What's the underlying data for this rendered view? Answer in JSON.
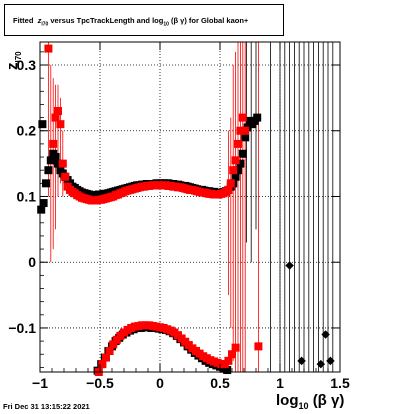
{
  "chart_data": {
    "type": "scatter",
    "title_parts": {
      "pre": "Fitted",
      "var": "z",
      "var_sub": "I70",
      "mid": " versus TpcTrackLength and log",
      "log_sub": "10",
      "post": "(β  γ) for Global kaon+"
    },
    "ylabel_main": "z",
    "ylabel_sub": "I70",
    "xlabel_main": "log",
    "xlabel_sub": "10",
    "xlabel_post": "(β γ)",
    "timestamp": "Fri Dec 31 13:15:22 2021",
    "xlim": [
      -1,
      1.5
    ],
    "ylim": [
      -0.167,
      0.335
    ],
    "xticks": [
      -1,
      -0.5,
      0,
      0.5,
      1,
      1.5
    ],
    "xtick_labels": [
      "−1",
      "−0.5",
      "0",
      "0.5",
      "1",
      "1.5"
    ],
    "yticks": [
      -0.1,
      0,
      0.1,
      0.2,
      0.3
    ],
    "ytick_labels": [
      "−0.1",
      "0",
      "0.1",
      "0.2",
      "0.3"
    ],
    "grid": true,
    "colors": {
      "black_series": "#000000",
      "red_series": "#ff0000"
    },
    "series": [
      {
        "color": "black",
        "points": [
          [
            -0.99,
            0.08
          ],
          [
            -0.98,
            0.21
          ],
          [
            -0.97,
            0.09
          ],
          [
            -0.95,
            0.12
          ],
          [
            -0.93,
            0.14
          ],
          [
            -0.91,
            0.155
          ],
          [
            -0.89,
            0.165
          ],
          [
            -0.87,
            0.16
          ],
          [
            -0.85,
            0.15
          ],
          [
            -0.83,
            0.14
          ],
          [
            -0.81,
            0.135
          ],
          [
            -0.79,
            0.13
          ],
          [
            -0.77,
            0.125
          ],
          [
            -0.75,
            0.12
          ],
          [
            -0.73,
            0.115
          ],
          [
            -0.71,
            0.113
          ],
          [
            -0.69,
            0.11
          ],
          [
            -0.67,
            0.108
          ],
          [
            -0.65,
            0.106
          ],
          [
            -0.63,
            0.105
          ],
          [
            -0.61,
            0.104
          ],
          [
            -0.59,
            0.103
          ],
          [
            -0.57,
            0.102
          ],
          [
            -0.55,
            0.102
          ],
          [
            -0.53,
            0.102
          ],
          [
            -0.51,
            0.103
          ],
          [
            -0.49,
            0.103
          ],
          [
            -0.47,
            0.104
          ],
          [
            -0.45,
            0.104
          ],
          [
            -0.43,
            0.105
          ],
          [
            -0.41,
            0.106
          ],
          [
            -0.39,
            0.107
          ],
          [
            -0.37,
            0.108
          ],
          [
            -0.35,
            0.109
          ],
          [
            -0.33,
            0.11
          ],
          [
            -0.31,
            0.111
          ],
          [
            -0.29,
            0.112
          ],
          [
            -0.27,
            0.113
          ],
          [
            -0.25,
            0.114
          ],
          [
            -0.23,
            0.115
          ],
          [
            -0.21,
            0.116
          ],
          [
            -0.19,
            0.117
          ],
          [
            -0.17,
            0.117
          ],
          [
            -0.15,
            0.118
          ],
          [
            -0.13,
            0.118
          ],
          [
            -0.11,
            0.119
          ],
          [
            -0.09,
            0.119
          ],
          [
            -0.07,
            0.119
          ],
          [
            -0.05,
            0.119
          ],
          [
            -0.03,
            0.12
          ],
          [
            -0.01,
            0.12
          ],
          [
            0.01,
            0.12
          ],
          [
            0.03,
            0.12
          ],
          [
            0.05,
            0.12
          ],
          [
            0.07,
            0.12
          ],
          [
            0.09,
            0.119
          ],
          [
            0.11,
            0.119
          ],
          [
            0.13,
            0.118
          ],
          [
            0.15,
            0.118
          ],
          [
            0.17,
            0.117
          ],
          [
            0.19,
            0.116
          ],
          [
            0.21,
            0.116
          ],
          [
            0.23,
            0.115
          ],
          [
            0.25,
            0.114
          ],
          [
            0.27,
            0.113
          ],
          [
            0.29,
            0.112
          ],
          [
            0.31,
            0.111
          ],
          [
            0.33,
            0.11
          ],
          [
            0.35,
            0.11
          ],
          [
            0.37,
            0.109
          ],
          [
            0.39,
            0.108
          ],
          [
            0.41,
            0.108
          ],
          [
            0.43,
            0.107
          ],
          [
            0.45,
            0.107
          ],
          [
            0.47,
            0.106
          ],
          [
            0.49,
            0.106
          ],
          [
            0.51,
            0.106
          ],
          [
            0.53,
            0.107
          ],
          [
            0.55,
            0.108
          ],
          [
            0.57,
            0.11
          ],
          [
            0.59,
            0.115
          ],
          [
            0.61,
            0.12
          ],
          [
            0.63,
            0.13
          ],
          [
            0.65,
            0.14
          ],
          [
            0.67,
            0.15
          ],
          [
            0.69,
            0.165
          ],
          [
            0.71,
            0.19
          ],
          [
            0.73,
            0.205
          ],
          [
            0.75,
            0.215
          ],
          [
            0.77,
            0.21
          ],
          [
            0.79,
            0.215
          ],
          [
            0.81,
            0.22
          ],
          [
            -0.52,
            -0.165
          ],
          [
            -0.49,
            -0.155
          ],
          [
            -0.46,
            -0.145
          ],
          [
            -0.43,
            -0.135
          ],
          [
            -0.4,
            -0.128
          ],
          [
            -0.37,
            -0.12
          ],
          [
            -0.34,
            -0.115
          ],
          [
            -0.31,
            -0.11
          ],
          [
            -0.28,
            -0.107
          ],
          [
            -0.25,
            -0.104
          ],
          [
            -0.22,
            -0.102
          ],
          [
            -0.19,
            -0.1
          ],
          [
            -0.16,
            -0.1
          ],
          [
            -0.13,
            -0.099
          ],
          [
            -0.1,
            -0.099
          ],
          [
            -0.07,
            -0.1
          ],
          [
            -0.04,
            -0.1
          ],
          [
            -0.01,
            -0.101
          ],
          [
            0.02,
            -0.102
          ],
          [
            0.05,
            -0.103
          ],
          [
            0.08,
            -0.105
          ],
          [
            0.11,
            -0.108
          ],
          [
            0.14,
            -0.112
          ],
          [
            0.17,
            -0.117
          ],
          [
            0.2,
            -0.122
          ],
          [
            0.23,
            -0.128
          ],
          [
            0.26,
            -0.133
          ],
          [
            0.29,
            -0.138
          ],
          [
            0.32,
            -0.142
          ],
          [
            0.35,
            -0.146
          ],
          [
            0.38,
            -0.15
          ],
          [
            0.41,
            -0.153
          ],
          [
            0.44,
            -0.155
          ],
          [
            0.47,
            -0.157
          ],
          [
            0.5,
            -0.159
          ],
          [
            0.53,
            -0.162
          ],
          [
            0.56,
            -0.164
          ],
          [
            1.08,
            -0.005
          ],
          [
            1.18,
            -0.15
          ],
          [
            1.34,
            -0.155
          ],
          [
            1.38,
            -0.11
          ],
          [
            1.42,
            -0.15
          ]
        ],
        "errorbars": [
          [
            0.72,
            0.03,
            0.335
          ],
          [
            0.76,
            0.0,
            0.335
          ],
          [
            0.8,
            0.05,
            0.335
          ],
          [
            0.92,
            -0.167,
            0.335
          ],
          [
            1.0,
            -0.167,
            0.335
          ],
          [
            1.04,
            -0.167,
            0.335
          ],
          [
            1.08,
            -0.167,
            0.335
          ],
          [
            1.12,
            -0.167,
            0.335
          ],
          [
            1.16,
            -0.167,
            0.335
          ],
          [
            1.2,
            -0.167,
            0.335
          ],
          [
            1.24,
            -0.167,
            0.335
          ],
          [
            1.28,
            -0.167,
            0.335
          ],
          [
            1.32,
            -0.167,
            0.335
          ],
          [
            1.36,
            -0.167,
            0.335
          ],
          [
            1.4,
            -0.167,
            0.335
          ],
          [
            1.44,
            -0.167,
            0.335
          ]
        ]
      },
      {
        "color": "red",
        "points": [
          [
            -0.93,
            0.325
          ],
          [
            -0.89,
            0.18
          ],
          [
            -0.87,
            0.22
          ],
          [
            -0.85,
            0.23
          ],
          [
            -0.83,
            0.21
          ],
          [
            -0.81,
            0.15
          ],
          [
            -0.79,
            0.13
          ],
          [
            -0.77,
            0.115
          ],
          [
            -0.75,
            0.11
          ],
          [
            -0.73,
            0.107
          ],
          [
            -0.71,
            0.105
          ],
          [
            -0.69,
            0.102
          ],
          [
            -0.67,
            0.1
          ],
          [
            -0.65,
            0.098
          ],
          [
            -0.63,
            0.097
          ],
          [
            -0.61,
            0.096
          ],
          [
            -0.59,
            0.095
          ],
          [
            -0.57,
            0.094
          ],
          [
            -0.55,
            0.094
          ],
          [
            -0.53,
            0.094
          ],
          [
            -0.51,
            0.095
          ],
          [
            -0.49,
            0.095
          ],
          [
            -0.47,
            0.096
          ],
          [
            -0.45,
            0.097
          ],
          [
            -0.43,
            0.098
          ],
          [
            -0.41,
            0.099
          ],
          [
            -0.39,
            0.1
          ],
          [
            -0.37,
            0.102
          ],
          [
            -0.35,
            0.103
          ],
          [
            -0.33,
            0.105
          ],
          [
            -0.31,
            0.106
          ],
          [
            -0.29,
            0.108
          ],
          [
            -0.27,
            0.109
          ],
          [
            -0.25,
            0.11
          ],
          [
            -0.23,
            0.111
          ],
          [
            -0.21,
            0.112
          ],
          [
            -0.19,
            0.113
          ],
          [
            -0.17,
            0.114
          ],
          [
            -0.15,
            0.115
          ],
          [
            -0.13,
            0.115
          ],
          [
            -0.11,
            0.116
          ],
          [
            -0.09,
            0.116
          ],
          [
            -0.07,
            0.117
          ],
          [
            -0.05,
            0.117
          ],
          [
            -0.03,
            0.117
          ],
          [
            -0.01,
            0.117
          ],
          [
            0.01,
            0.117
          ],
          [
            0.03,
            0.117
          ],
          [
            0.05,
            0.117
          ],
          [
            0.07,
            0.116
          ],
          [
            0.09,
            0.116
          ],
          [
            0.11,
            0.115
          ],
          [
            0.13,
            0.115
          ],
          [
            0.15,
            0.114
          ],
          [
            0.17,
            0.114
          ],
          [
            0.19,
            0.113
          ],
          [
            0.21,
            0.112
          ],
          [
            0.23,
            0.111
          ],
          [
            0.25,
            0.11
          ],
          [
            0.27,
            0.11
          ],
          [
            0.29,
            0.109
          ],
          [
            0.31,
            0.108
          ],
          [
            0.33,
            0.107
          ],
          [
            0.35,
            0.106
          ],
          [
            0.37,
            0.106
          ],
          [
            0.39,
            0.105
          ],
          [
            0.41,
            0.104
          ],
          [
            0.43,
            0.104
          ],
          [
            0.45,
            0.103
          ],
          [
            0.47,
            0.103
          ],
          [
            0.49,
            0.103
          ],
          [
            0.51,
            0.104
          ],
          [
            0.53,
            0.105
          ],
          [
            0.55,
            0.107
          ],
          [
            0.57,
            0.11
          ],
          [
            0.59,
            0.12
          ],
          [
            0.61,
            0.14
          ],
          [
            0.63,
            0.155
          ],
          [
            0.65,
            0.18
          ],
          [
            0.67,
            0.2
          ],
          [
            0.69,
            0.22
          ],
          [
            0.71,
            0.2
          ],
          [
            -0.51,
            -0.167
          ],
          [
            -0.48,
            -0.155
          ],
          [
            -0.45,
            -0.145
          ],
          [
            -0.42,
            -0.135
          ],
          [
            -0.39,
            -0.125
          ],
          [
            -0.36,
            -0.118
          ],
          [
            -0.33,
            -0.112
          ],
          [
            -0.3,
            -0.107
          ],
          [
            -0.27,
            -0.103
          ],
          [
            -0.24,
            -0.1
          ],
          [
            -0.21,
            -0.098
          ],
          [
            -0.18,
            -0.097
          ],
          [
            -0.15,
            -0.096
          ],
          [
            -0.12,
            -0.096
          ],
          [
            -0.09,
            -0.096
          ],
          [
            -0.06,
            -0.097
          ],
          [
            -0.03,
            -0.098
          ],
          [
            0.0,
            -0.099
          ],
          [
            0.03,
            -0.1
          ],
          [
            0.06,
            -0.102
          ],
          [
            0.09,
            -0.104
          ],
          [
            0.12,
            -0.107
          ],
          [
            0.15,
            -0.111
          ],
          [
            0.18,
            -0.116
          ],
          [
            0.21,
            -0.121
          ],
          [
            0.24,
            -0.126
          ],
          [
            0.27,
            -0.131
          ],
          [
            0.3,
            -0.135
          ],
          [
            0.33,
            -0.139
          ],
          [
            0.36,
            -0.143
          ],
          [
            0.39,
            -0.146
          ],
          [
            0.42,
            -0.149
          ],
          [
            0.45,
            -0.151
          ],
          [
            0.48,
            -0.153
          ],
          [
            0.51,
            -0.155
          ],
          [
            0.54,
            -0.155
          ],
          [
            0.57,
            -0.15
          ],
          [
            0.6,
            -0.14
          ],
          [
            0.63,
            -0.13
          ],
          [
            0.82,
            -0.128
          ]
        ],
        "errorbars": [
          [
            -0.93,
            0.1,
            0.335
          ],
          [
            -0.91,
            0.0,
            0.3
          ],
          [
            -0.89,
            0.02,
            0.28
          ],
          [
            -0.87,
            0.05,
            0.27
          ],
          [
            -0.85,
            0.1,
            0.27
          ],
          [
            -0.83,
            0.12,
            0.25
          ],
          [
            -0.81,
            0.1,
            0.2
          ],
          [
            0.57,
            -0.05,
            0.2
          ],
          [
            0.59,
            -0.1,
            0.22
          ],
          [
            0.61,
            -0.15,
            0.3
          ],
          [
            0.63,
            -0.167,
            0.32
          ],
          [
            0.65,
            -0.167,
            0.335
          ],
          [
            0.67,
            -0.167,
            0.335
          ],
          [
            0.69,
            -0.167,
            0.335
          ],
          [
            0.71,
            -0.167,
            0.335
          ],
          [
            0.82,
            -0.167,
            0.335
          ]
        ]
      }
    ]
  }
}
